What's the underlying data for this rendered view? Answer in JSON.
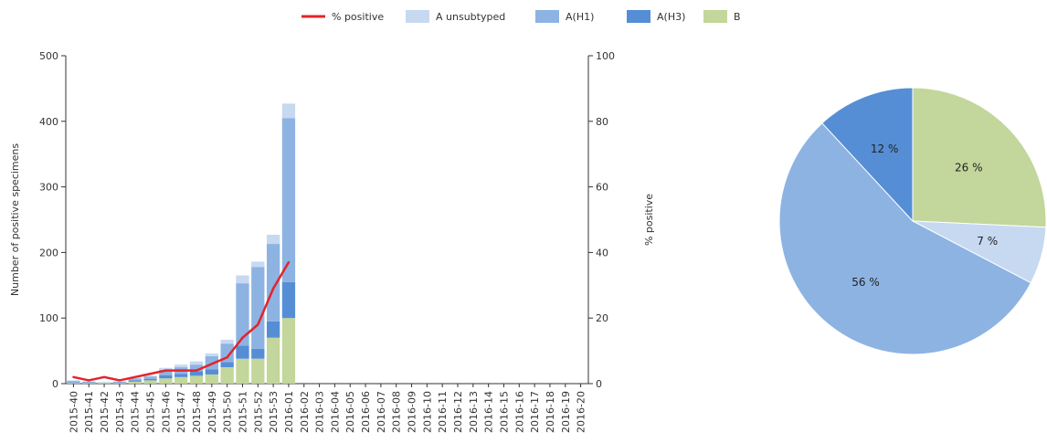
{
  "legend": {
    "items": [
      {
        "label": "% positive",
        "color": "#e3242b",
        "kind": "line"
      },
      {
        "label": "A unsubtyped",
        "color": "#c6d9f1",
        "kind": "box"
      },
      {
        "label": "A(H1)",
        "color": "#8db3e2",
        "kind": "box"
      },
      {
        "label": "A(H3)",
        "color": "#558ed5",
        "kind": "box"
      },
      {
        "label": "B",
        "color": "#c3d69b",
        "kind": "box"
      }
    ]
  },
  "chart_data": [
    {
      "type": "bar",
      "stacked": true,
      "ylabel": "Number of positive specimens",
      "y2label": "% positive",
      "ylim": [
        0,
        500
      ],
      "y2lim": [
        0,
        100
      ],
      "yticks": [
        0,
        100,
        200,
        300,
        400,
        500
      ],
      "y2ticks": [
        0,
        20,
        40,
        60,
        80,
        100
      ],
      "categories": [
        "2015-40",
        "2015-41",
        "2015-42",
        "2015-43",
        "2015-44",
        "2015-45",
        "2015-46",
        "2015-47",
        "2015-48",
        "2015-49",
        "2015-50",
        "2015-51",
        "2015-52",
        "2015-53",
        "2016-01",
        "2016-02",
        "2016-03",
        "2016-04",
        "2016-05",
        "2016-06",
        "2016-07",
        "2016-08",
        "2016-09",
        "2016-10",
        "2016-11",
        "2016-12",
        "2016-13",
        "2016-14",
        "2016-15",
        "2016-16",
        "2016-17",
        "2016-18",
        "2016-19",
        "2016-20"
      ],
      "series": [
        {
          "name": "B",
          "color": "#c3d69b",
          "values": [
            1,
            1,
            1,
            1,
            3,
            5,
            8,
            10,
            12,
            14,
            25,
            38,
            38,
            70,
            100,
            0,
            0,
            0,
            0,
            0,
            0,
            0,
            0,
            0,
            0,
            0,
            0,
            0,
            0,
            0,
            0,
            0,
            0,
            0
          ]
        },
        {
          "name": "A(H3)",
          "color": "#558ed5",
          "values": [
            1,
            1,
            0,
            1,
            2,
            2,
            5,
            5,
            7,
            8,
            8,
            20,
            15,
            25,
            55,
            0,
            0,
            0,
            0,
            0,
            0,
            0,
            0,
            0,
            0,
            0,
            0,
            0,
            0,
            0,
            0,
            0,
            0,
            0
          ]
        },
        {
          "name": "A(H1)",
          "color": "#8db3e2",
          "values": [
            2,
            1,
            1,
            1,
            3,
            4,
            8,
            10,
            10,
            20,
            28,
            95,
            125,
            118,
            250,
            0,
            0,
            0,
            0,
            0,
            0,
            0,
            0,
            0,
            0,
            0,
            0,
            0,
            0,
            0,
            0,
            0,
            0,
            0
          ]
        },
        {
          "name": "A unsubtyped",
          "color": "#c6d9f1",
          "values": [
            1,
            0,
            0,
            0,
            1,
            1,
            3,
            4,
            5,
            4,
            6,
            12,
            8,
            14,
            22,
            0,
            0,
            0,
            0,
            0,
            0,
            0,
            0,
            0,
            0,
            0,
            0,
            0,
            0,
            0,
            0,
            0,
            0,
            0
          ]
        }
      ],
      "line": {
        "name": "% positive",
        "color": "#e3242b",
        "axis": "right",
        "values": [
          2,
          1,
          2,
          1,
          2,
          3,
          4,
          4,
          4,
          6,
          8,
          14,
          18,
          29,
          37
        ]
      }
    },
    {
      "type": "pie",
      "slices": [
        {
          "name": "B",
          "value": 26,
          "label": "26 %",
          "color": "#c3d69b"
        },
        {
          "name": "A unsubtyped",
          "value": 7,
          "label": "7 %",
          "color": "#c6d9f1"
        },
        {
          "name": "A(H1)",
          "value": 56,
          "label": "56 %",
          "color": "#8db3e2"
        },
        {
          "name": "A(H3)",
          "value": 12,
          "label": "12 %",
          "color": "#558ed5"
        }
      ]
    }
  ]
}
